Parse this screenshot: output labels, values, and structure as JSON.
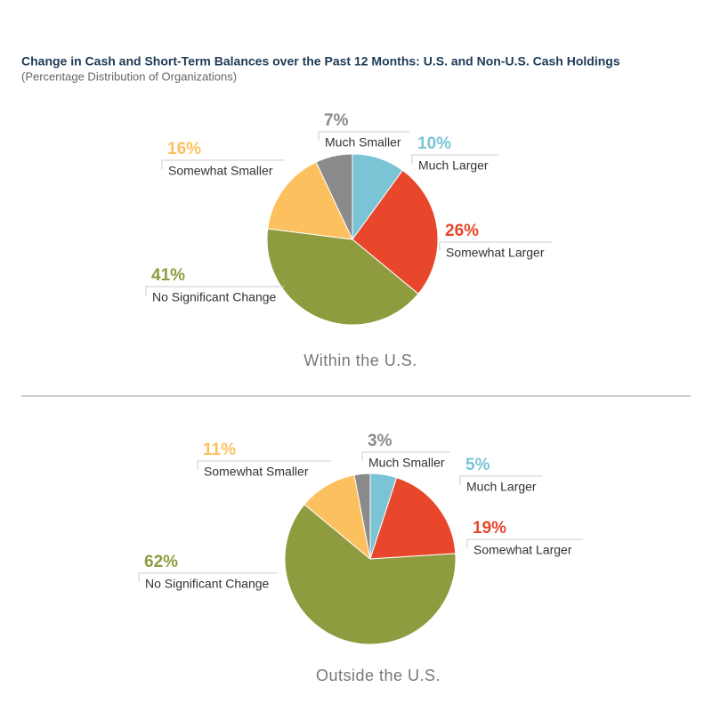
{
  "header": {
    "title": "Change in Cash and Short-Term Balances over the Past 12 Months: U.S. and Non-U.S. Cash Holdings",
    "subtitle": "(Percentage Distribution of Organizations)"
  },
  "chart_data": [
    {
      "type": "pie",
      "title": "Within the U.S.",
      "categories": [
        "Much Larger",
        "Somewhat Larger",
        "No Significant Change",
        "Somewhat Smaller",
        "Much Smaller"
      ],
      "values": [
        10,
        26,
        41,
        16,
        7
      ],
      "value_labels": [
        "10%",
        "26%",
        "41%",
        "16%",
        "7%"
      ],
      "colors": [
        "#7ac4d6",
        "#e8472b",
        "#8f9b3f",
        "#fdc05e",
        "#8a8a8a"
      ]
    },
    {
      "type": "pie",
      "title": "Outside the U.S.",
      "categories": [
        "Much Larger",
        "Somewhat Larger",
        "No Significant Change",
        "Somewhat Smaller",
        "Much Smaller"
      ],
      "values": [
        5,
        19,
        62,
        11,
        3
      ],
      "value_labels": [
        "5%",
        "19%",
        "62%",
        "11%",
        "3%"
      ],
      "colors": [
        "#7ac4d6",
        "#e8472b",
        "#8f9b3f",
        "#fdc05e",
        "#8a8a8a"
      ]
    }
  ]
}
